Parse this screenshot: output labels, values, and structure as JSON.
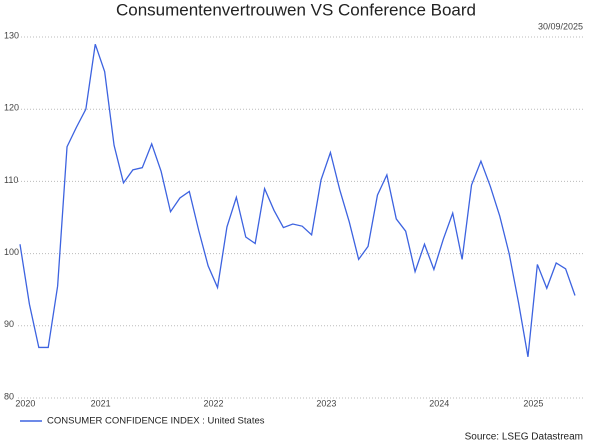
{
  "chart_data": {
    "type": "line",
    "title": "Consumentenvertrouwen VS Conference Board",
    "date": "30/09/2025",
    "source": "Source: LSEG Datastream",
    "categories": [
      null,
      "2020",
      null,
      null,
      null,
      null,
      null,
      null,
      null,
      "2021",
      null,
      null,
      null,
      null,
      null,
      null,
      null,
      null,
      null,
      null,
      null,
      "2022",
      null,
      null,
      null,
      null,
      null,
      null,
      null,
      null,
      null,
      null,
      null,
      "2023",
      null,
      null,
      null,
      null,
      null,
      null,
      null,
      null,
      null,
      null,
      null,
      "2024",
      null,
      null,
      null,
      null,
      null,
      null,
      null,
      null,
      null,
      "2025",
      null,
      null,
      null,
      null
    ],
    "series": [
      {
        "name": "CONSUMER CONFIDENCE INDEX : United States",
        "color": "#3d63e0",
        "values": [
          101.3,
          93,
          87,
          87,
          95.5,
          114.8,
          117.5,
          120,
          129,
          125.2,
          115,
          109.8,
          111.6,
          111.9,
          115.2,
          111.4,
          105.8,
          107.7,
          108.6,
          103.2,
          98.3,
          95.3,
          103.7,
          107.8,
          102.3,
          101.4,
          109,
          106,
          103.6,
          104.1,
          103.8,
          102.6,
          110.2,
          114,
          108.8,
          104.4,
          99.2,
          101,
          108.1,
          110.9,
          104.8,
          103.1,
          97.5,
          101.3,
          97.8,
          102,
          105.6,
          99.2,
          109.5,
          112.8,
          109.3,
          105.2,
          100,
          93.2,
          85.7,
          98.5,
          95.2,
          98.7,
          97.9,
          94.2
        ]
      }
    ],
    "ylim": [
      80,
      130
    ],
    "yticks": [
      80,
      90,
      100,
      110,
      120,
      130
    ],
    "grid": true
  }
}
